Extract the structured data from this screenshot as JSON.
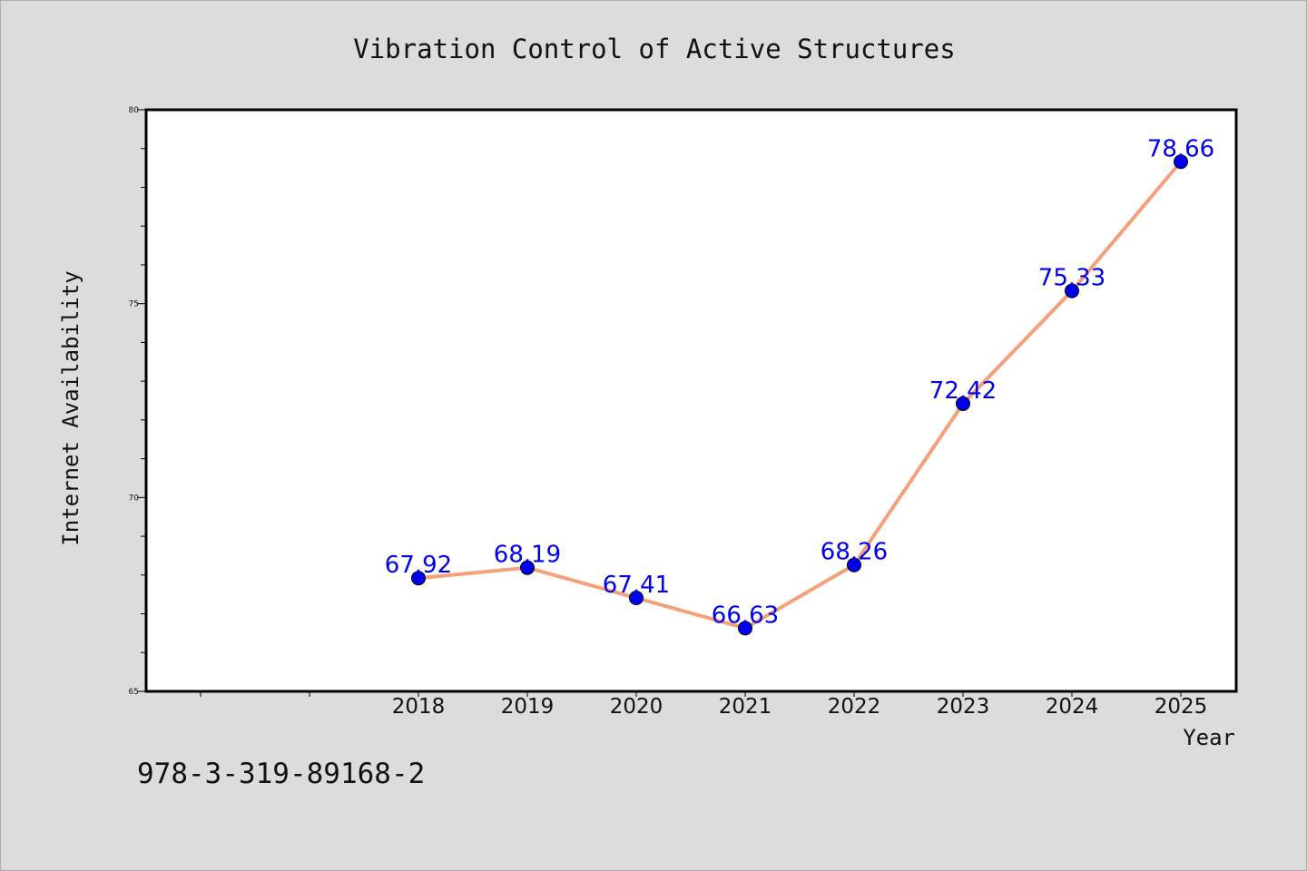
{
  "chart_data": {
    "type": "line",
    "title": "Vibration Control of Active Structures",
    "xlabel": "Year",
    "ylabel": "Internet Availability",
    "x": [
      "2018",
      "2019",
      "2020",
      "2021",
      "2022",
      "2023",
      "2024",
      "2025"
    ],
    "series": [
      {
        "values": [
          67.92,
          68.19,
          67.41,
          66.63,
          68.26,
          72.42,
          75.33,
          78.66
        ]
      }
    ],
    "data_labels": [
      "67.92",
      "68.19",
      "67.41",
      "66.63",
      "68.26",
      "72.42",
      "75.33",
      "78.66"
    ],
    "y_ticks": [
      "65",
      "70",
      "75",
      "80"
    ],
    "ylim": [
      65,
      80
    ],
    "grid": false,
    "legend": "none",
    "colors": {
      "line": "#f4a07a",
      "marker": "#0000ee",
      "data_label": "#0000ee",
      "background": "#dcdcdc",
      "plot_area": "#ffffff"
    }
  },
  "footer": {
    "isbn": "978-3-319-89168-2"
  }
}
